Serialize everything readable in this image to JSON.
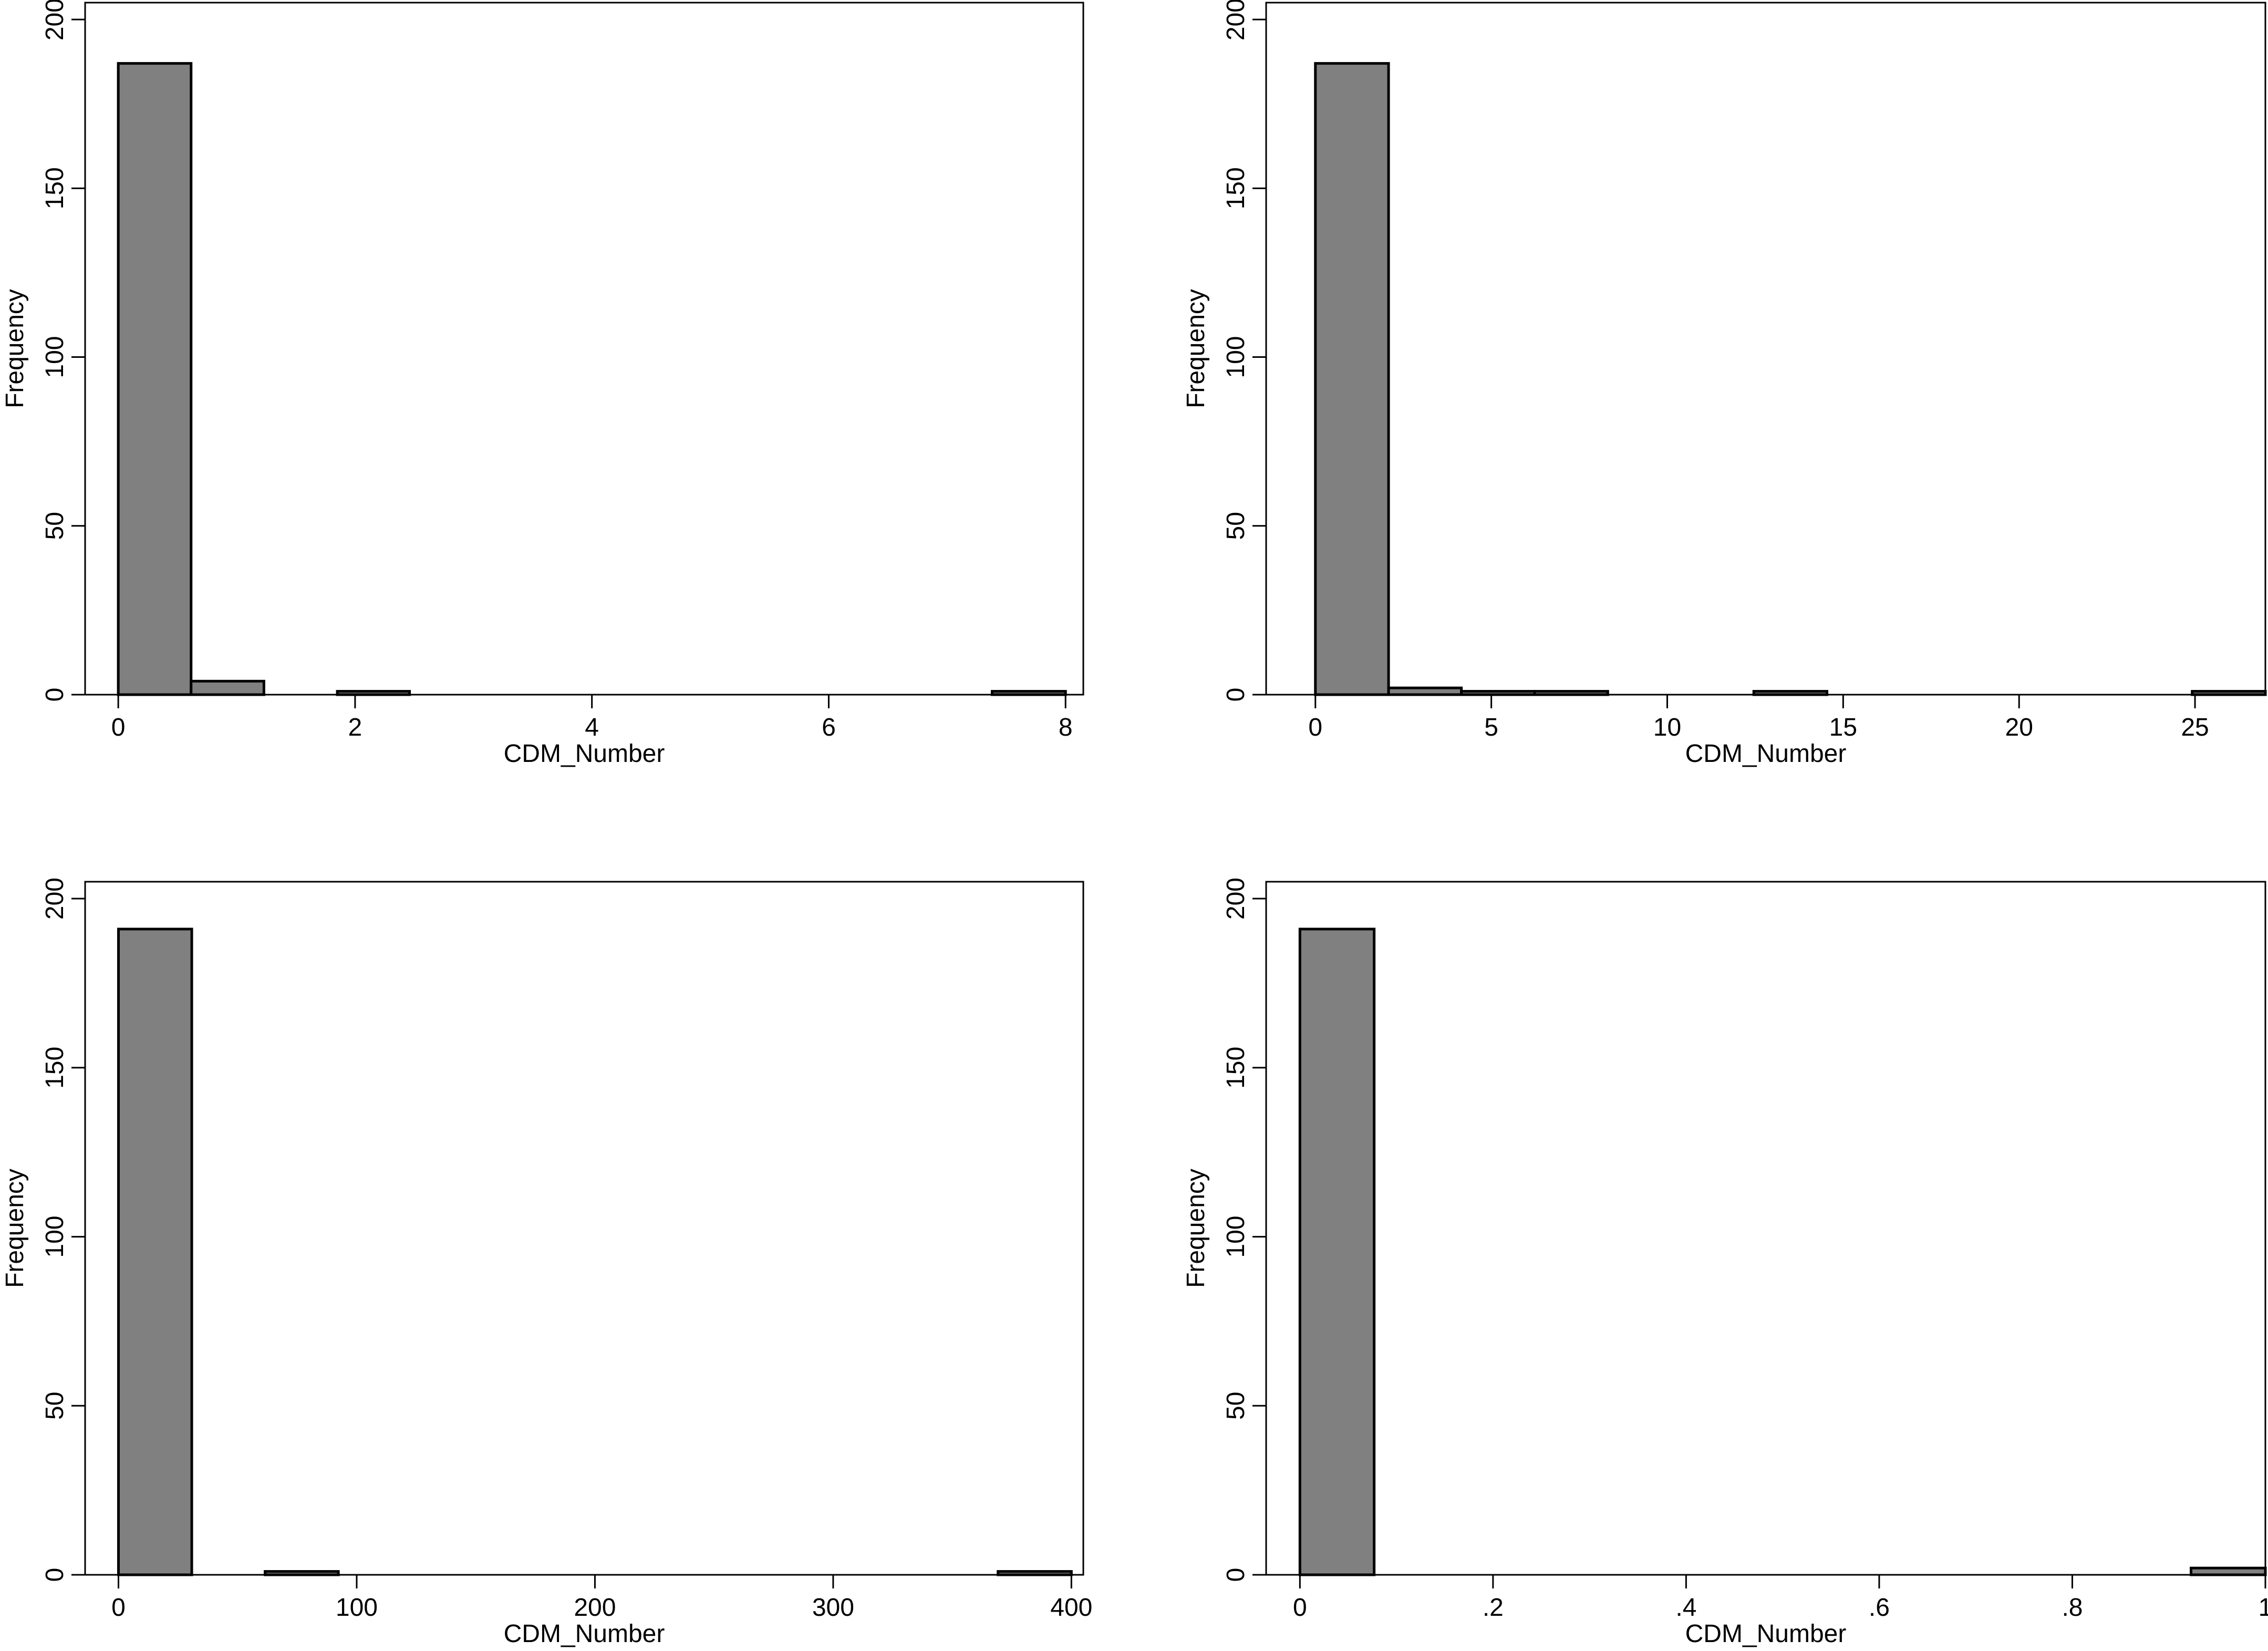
{
  "colors": {
    "bar_fill": "#808080",
    "bar_stroke": "#000000",
    "frame": "#000000",
    "background": "#ffffff"
  },
  "chart_data": [
    {
      "type": "bar",
      "xlabel": "CDM_Number",
      "ylabel": "Frequency",
      "xlim": [
        -0.28,
        8.15
      ],
      "ylim": [
        0,
        205
      ],
      "xticks": [
        0,
        2,
        4,
        6,
        8
      ],
      "xtick_labels": [
        "0",
        "2",
        "4",
        "6",
        "8"
      ],
      "yticks": [
        0,
        50,
        100,
        150,
        200
      ],
      "ytick_labels": [
        "0",
        "50",
        "100",
        "150",
        "200"
      ],
      "grid": false,
      "legend": false,
      "bin_width": 0.615,
      "bins": [
        {
          "x0": 0.0,
          "x1": 0.615,
          "count": 187
        },
        {
          "x0": 0.615,
          "x1": 1.23,
          "count": 4
        },
        {
          "x0": 1.85,
          "x1": 2.46,
          "count": 1
        },
        {
          "x0": 7.38,
          "x1": 8.0,
          "count": 1
        }
      ]
    },
    {
      "type": "bar",
      "xlabel": "CDM_Number",
      "ylabel": "Frequency",
      "xlim": [
        -1.4,
        27.0
      ],
      "ylim": [
        0,
        205
      ],
      "xticks": [
        0,
        5,
        10,
        15,
        20,
        25
      ],
      "xtick_labels": [
        "0",
        "5",
        "10",
        "15",
        "20",
        "25"
      ],
      "yticks": [
        0,
        50,
        100,
        150,
        200
      ],
      "ytick_labels": [
        "0",
        "50",
        "100",
        "150",
        "200"
      ],
      "grid": false,
      "legend": false,
      "bin_width": 2.08,
      "bins": [
        {
          "x0": 0.0,
          "x1": 2.08,
          "count": 187
        },
        {
          "x0": 2.08,
          "x1": 4.15,
          "count": 2
        },
        {
          "x0": 4.15,
          "x1": 6.23,
          "count": 1
        },
        {
          "x0": 6.23,
          "x1": 8.31,
          "count": 1
        },
        {
          "x0": 12.46,
          "x1": 14.54,
          "count": 1
        },
        {
          "x0": 24.92,
          "x1": 27.0,
          "count": 1
        }
      ]
    },
    {
      "type": "bar",
      "xlabel": "CDM_Number",
      "ylabel": "Frequency",
      "xlim": [
        -14,
        405
      ],
      "ylim": [
        0,
        205
      ],
      "xticks": [
        0,
        100,
        200,
        300,
        400
      ],
      "xtick_labels": [
        "0",
        "100",
        "200",
        "300",
        "400"
      ],
      "yticks": [
        0,
        50,
        100,
        150,
        200
      ],
      "ytick_labels": [
        "0",
        "50",
        "100",
        "150",
        "200"
      ],
      "grid": false,
      "legend": false,
      "bin_width": 30.77,
      "bins": [
        {
          "x0": 0.0,
          "x1": 30.77,
          "count": 191
        },
        {
          "x0": 61.54,
          "x1": 92.31,
          "count": 1
        },
        {
          "x0": 369.2,
          "x1": 400.0,
          "count": 1
        }
      ]
    },
    {
      "type": "bar",
      "xlabel": "CDM_Number",
      "ylabel": "Frequency",
      "xlim": [
        -0.035,
        1.0
      ],
      "ylim": [
        0,
        205
      ],
      "xticks": [
        0,
        0.2,
        0.4,
        0.6,
        0.8,
        1
      ],
      "xtick_labels": [
        "0",
        ".2",
        ".4",
        ".6",
        ".8",
        "1"
      ],
      "yticks": [
        0,
        50,
        100,
        150,
        200
      ],
      "ytick_labels": [
        "0",
        "50",
        "100",
        "150",
        "200"
      ],
      "grid": false,
      "legend": false,
      "bin_width": 0.0769,
      "bins": [
        {
          "x0": 0.0,
          "x1": 0.0769,
          "count": 191
        },
        {
          "x0": 0.923,
          "x1": 1.0,
          "count": 2
        }
      ]
    }
  ]
}
